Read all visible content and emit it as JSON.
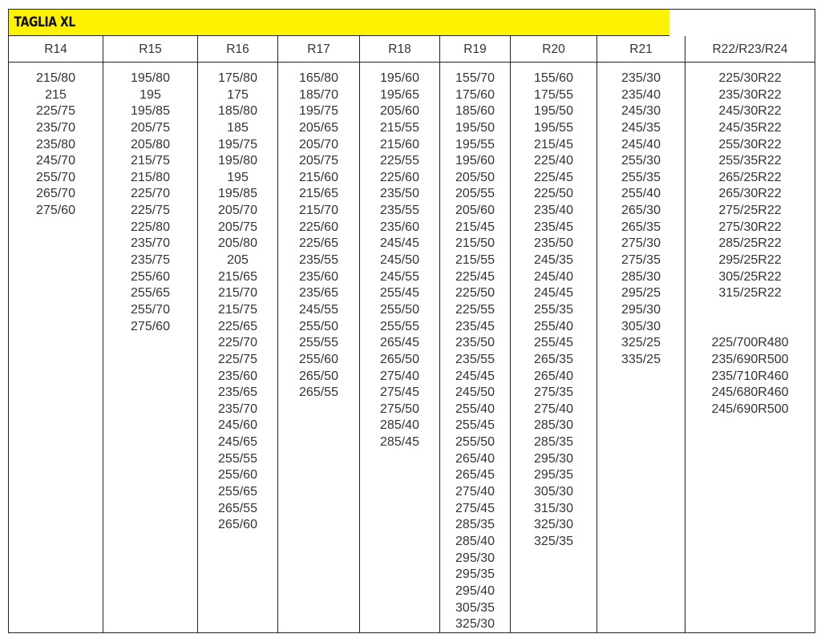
{
  "title": "TAGLIA XL",
  "colors": {
    "header_bg": "#fff200",
    "border": "#222222"
  },
  "columns": [
    {
      "header": "R14",
      "values": [
        "215/80",
        "215",
        "225/75",
        "235/70",
        "235/80",
        "245/70",
        "255/70",
        "265/70",
        "275/60"
      ]
    },
    {
      "header": "R15",
      "values": [
        "195/80",
        "195",
        "195/85",
        "205/75",
        "205/80",
        "215/75",
        "215/80",
        "225/70",
        "225/75",
        "225/80",
        "235/70",
        "235/75",
        "255/60",
        "255/65",
        "255/70",
        "275/60"
      ]
    },
    {
      "header": "R16",
      "values": [
        "175/80",
        "175",
        "185/80",
        "185",
        "195/75",
        "195/80",
        "195",
        "195/85",
        "205/70",
        "205/75",
        "205/80",
        "205",
        "215/65",
        "215/70",
        "215/75",
        "225/65",
        "225/70",
        "225/75",
        "235/60",
        "235/65",
        "235/70",
        "245/60",
        "245/65",
        "255/55",
        "255/60",
        "255/65",
        "265/55",
        "265/60"
      ]
    },
    {
      "header": "R17",
      "values": [
        "165/80",
        "185/70",
        "195/75",
        "205/65",
        "205/70",
        "205/75",
        "215/60",
        "215/65",
        "215/70",
        "225/60",
        "225/65",
        "235/55",
        "235/60",
        "235/65",
        "245/55",
        "255/50",
        "255/55",
        "255/60",
        "265/50",
        "265/55"
      ]
    },
    {
      "header": "R18",
      "values": [
        "195/60",
        "195/65",
        "205/60",
        "215/55",
        "215/60",
        "225/55",
        "225/60",
        "235/50",
        "235/55",
        "235/60",
        "245/45",
        "245/50",
        "245/55",
        "255/45",
        "255/50",
        "255/55",
        "265/45",
        "265/50",
        "275/40",
        "275/45",
        "275/50",
        "285/40",
        "285/45"
      ]
    },
    {
      "header": "R19",
      "values": [
        "155/70",
        "175/60",
        "185/60",
        "195/50",
        "195/55",
        "195/60",
        "205/50",
        "205/55",
        "205/60",
        "215/45",
        "215/50",
        "215/55",
        "225/45",
        "225/50",
        "225/55",
        "235/45",
        "235/50",
        "235/55",
        "245/45",
        "245/50",
        "255/40",
        "255/45",
        "255/50",
        "265/40",
        "265/45",
        "275/40",
        "275/45",
        "285/35",
        "285/40",
        "295/30",
        "295/35",
        "295/40",
        "305/35",
        "325/30"
      ]
    },
    {
      "header": "R20",
      "values": [
        "155/60",
        "175/55",
        "195/50",
        "195/55",
        "215/45",
        "225/40",
        "225/45",
        "225/50",
        "235/40",
        "235/45",
        "235/50",
        "245/35",
        "245/40",
        "245/45",
        "255/35",
        "255/40",
        "255/45",
        "265/35",
        "265/40",
        "275/35",
        "275/40",
        "285/30",
        "285/35",
        "295/30",
        "295/35",
        "305/30",
        "315/30",
        "325/30",
        "325/35"
      ]
    },
    {
      "header": "R21",
      "values": [
        "235/30",
        "235/40",
        "245/30",
        "245/35",
        "245/40",
        "255/30",
        "255/35",
        "255/40",
        "265/30",
        "265/35",
        "275/30",
        "275/35",
        "285/30",
        "295/25",
        "295/30",
        "305/30",
        "325/25",
        "335/25"
      ]
    },
    {
      "header": "R22/R23/R24",
      "values": [
        "225/30R22",
        "235/30R22",
        "245/30R22",
        "245/35R22",
        "255/30R22",
        "255/35R22",
        "265/25R22",
        "265/30R22",
        "275/25R22",
        "275/30R22",
        "285/25R22",
        "295/25R22",
        "305/25R22",
        "315/25R22",
        "",
        "",
        "225/700R480",
        "235/690R500",
        "235/710R460",
        "245/680R460",
        "245/690R500"
      ]
    }
  ]
}
